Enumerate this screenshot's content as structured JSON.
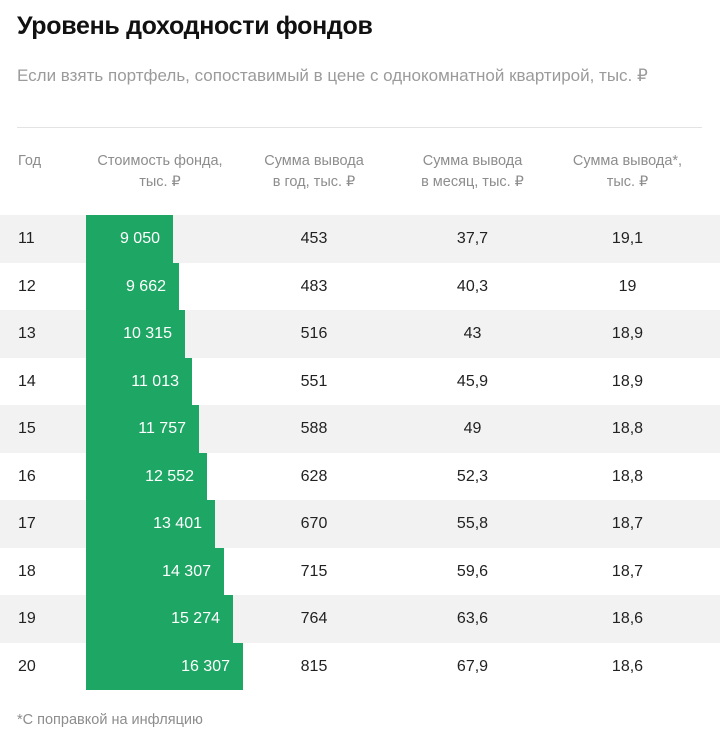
{
  "title": "Уровень доходности фондов",
  "subtitle": "Если взять портфель, сопоставимый в цене с однокомнатной квартирой, тыс. ₽",
  "headers": {
    "year": "Год",
    "cost": [
      "Стоимость фонда,",
      "тыс. ₽"
    ],
    "per_year": [
      "Сумма вывода",
      "в год, тыс. ₽"
    ],
    "per_month": [
      "Сумма вывода",
      "в месяц, тыс. ₽"
    ],
    "adjusted": [
      "Сумма вывода*,",
      "тыс. ₽"
    ]
  },
  "footnote": "*С поправкой на инфляцию",
  "colors": {
    "bar": "#1ea764",
    "row_shade": "#f2f2f2"
  },
  "chart_data": {
    "type": "table",
    "title": "Уровень доходности фондов",
    "columns": [
      "Год",
      "Стоимость фонда, тыс. ₽",
      "Сумма вывода в год, тыс. ₽",
      "Сумма вывода в месяц, тыс. ₽",
      "Сумма вывода*, тыс. ₽"
    ],
    "bar_column_max": 16307,
    "rows": [
      {
        "year": "11",
        "cost": 9050,
        "cost_label": "9 050",
        "per_year": "453",
        "per_month": "37,7",
        "adjusted": "19,1"
      },
      {
        "year": "12",
        "cost": 9662,
        "cost_label": "9 662",
        "per_year": "483",
        "per_month": "40,3",
        "adjusted": "19"
      },
      {
        "year": "13",
        "cost": 10315,
        "cost_label": "10 315",
        "per_year": "516",
        "per_month": "43",
        "adjusted": "18,9"
      },
      {
        "year": "14",
        "cost": 11013,
        "cost_label": "11 013",
        "per_year": "551",
        "per_month": "45,9",
        "adjusted": "18,9"
      },
      {
        "year": "15",
        "cost": 11757,
        "cost_label": "11 757",
        "per_year": "588",
        "per_month": "49",
        "adjusted": "18,8"
      },
      {
        "year": "16",
        "cost": 12552,
        "cost_label": "12 552",
        "per_year": "628",
        "per_month": "52,3",
        "adjusted": "18,8"
      },
      {
        "year": "17",
        "cost": 13401,
        "cost_label": "13 401",
        "per_year": "670",
        "per_month": "55,8",
        "adjusted": "18,7"
      },
      {
        "year": "18",
        "cost": 14307,
        "cost_label": "14 307",
        "per_year": "715",
        "per_month": "59,6",
        "adjusted": "18,7"
      },
      {
        "year": "19",
        "cost": 15274,
        "cost_label": "15 274",
        "per_year": "764",
        "per_month": "63,6",
        "adjusted": "18,6"
      },
      {
        "year": "20",
        "cost": 16307,
        "cost_label": "16 307",
        "per_year": "815",
        "per_month": "67,9",
        "adjusted": "18,6"
      }
    ]
  }
}
